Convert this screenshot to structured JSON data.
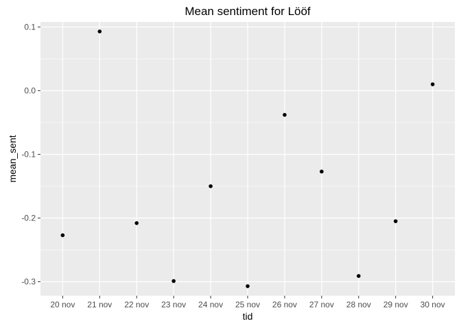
{
  "chart_data": {
    "type": "scatter",
    "title": "Mean sentiment for Lööf",
    "xlabel": "tid",
    "ylabel": "mean_sent",
    "x": [
      "20 nov",
      "21 nov",
      "22 nov",
      "23 nov",
      "24 nov",
      "25 nov",
      "26 nov",
      "27 nov",
      "28 nov",
      "29 nov",
      "30 nov"
    ],
    "y": [
      -0.227,
      0.093,
      -0.208,
      -0.299,
      -0.15,
      -0.307,
      -0.038,
      -0.127,
      -0.291,
      -0.205,
      0.01
    ],
    "ylim": [
      -0.322,
      0.108
    ],
    "yticks": [
      0.1,
      0.0,
      -0.1,
      -0.2,
      -0.3
    ],
    "ytick_labels": [
      "0.1",
      "0.0",
      "-0.1",
      "-0.2",
      "-0.3"
    ],
    "grid": true,
    "legend": false,
    "colors": {
      "panel": "#ebebeb",
      "grid_major": "#ffffff",
      "point": "#000000",
      "tick_text": "#4d4d4d"
    }
  }
}
